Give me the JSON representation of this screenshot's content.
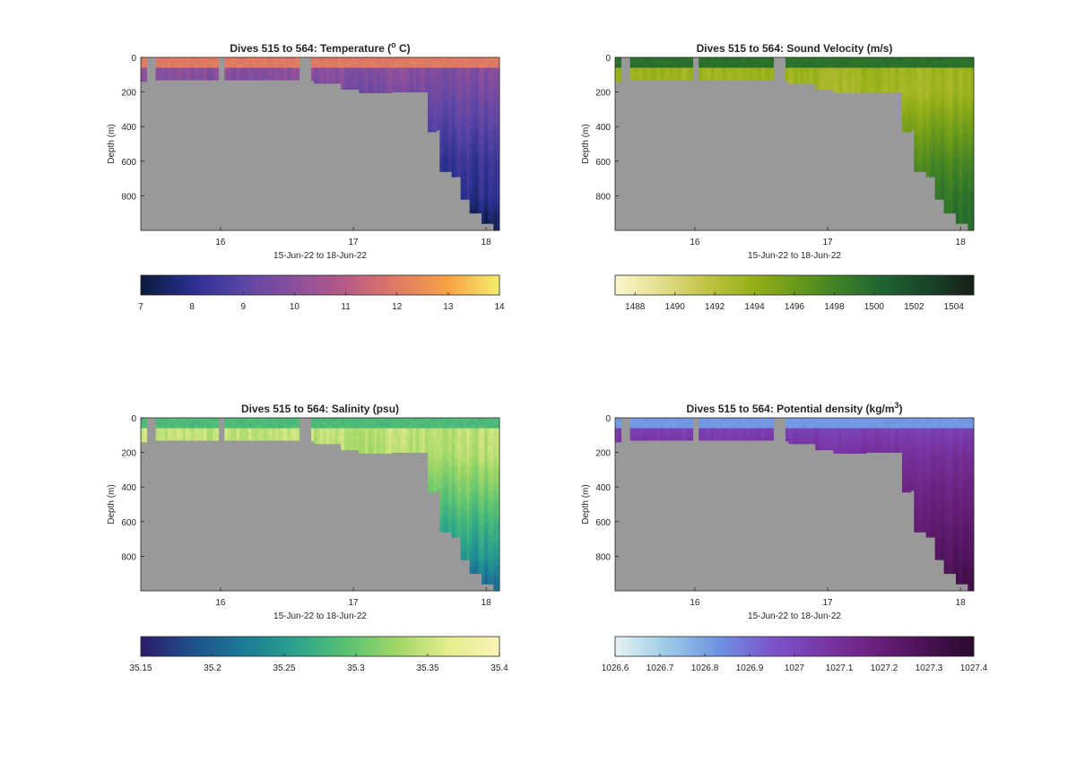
{
  "figure": {
    "background": "#ffffff",
    "nodata_color": "#999999"
  },
  "chart_data": [
    {
      "type": "heatmap",
      "id": "temperature",
      "title": "Dives 515 to 564: Temperature (",
      "title_sup": "o",
      "title_suffix": " C)",
      "xlabel": "15-Jun-22 to 18-Jun-22",
      "ylabel": "Depth (m)",
      "xlim": [
        15.4,
        18.1
      ],
      "ylim": [
        0,
        1000
      ],
      "y_reversed": true,
      "xticks": [
        16,
        17,
        18
      ],
      "xtick_labels": [
        "16",
        "17",
        "18"
      ],
      "yticks": [
        0,
        200,
        400,
        600,
        800
      ],
      "ytick_labels": [
        "0",
        "200",
        "400",
        "600",
        "800"
      ],
      "colormap": [
        "#0a1a3a",
        "#2a2f8f",
        "#5b45a6",
        "#8a4f9c",
        "#b85a86",
        "#e07a63",
        "#f7a245",
        "#f5ee6c"
      ],
      "colorbar_range": [
        7,
        14
      ],
      "colorbar_ticks": [
        7,
        8,
        9,
        10,
        11,
        12,
        13,
        14
      ],
      "colorbar_tick_labels": [
        "7",
        "8",
        "9",
        "10",
        "11",
        "12",
        "13",
        "14"
      ],
      "surface": {
        "value": 12.0,
        "depth_start": 0,
        "depth_end": 55
      },
      "profile": [
        {
          "depth": 60,
          "value": 10.0
        },
        {
          "depth": 200,
          "value": 9.6
        },
        {
          "depth": 400,
          "value": 9.0
        },
        {
          "depth": 600,
          "value": 8.4
        },
        {
          "depth": 800,
          "value": 8.1
        },
        {
          "depth": 950,
          "value": 7.4
        }
      ],
      "col_amp": 0.3,
      "lower_shift": -0.1
    },
    {
      "type": "heatmap",
      "id": "sound_velocity",
      "title": "Dives 515 to 564: Sound Velocity (m/s)",
      "xlabel": "15-Jun-22 to 18-Jun-22",
      "ylabel": "Depth (m)",
      "xlim": [
        15.4,
        18.1
      ],
      "ylim": [
        0,
        1000
      ],
      "y_reversed": true,
      "xticks": [
        16,
        17,
        18
      ],
      "xtick_labels": [
        "16",
        "17",
        "18"
      ],
      "yticks": [
        0,
        200,
        400,
        600,
        800
      ],
      "ytick_labels": [
        "0",
        "200",
        "400",
        "600",
        "800"
      ],
      "colormap": [
        "#fdf6cf",
        "#e4df8e",
        "#c3c447",
        "#99b119",
        "#6c9a1a",
        "#3d8026",
        "#1d6331",
        "#1a4427",
        "#151e16"
      ],
      "colorbar_range": [
        1487,
        1505
      ],
      "colorbar_ticks": [
        1488,
        1490,
        1492,
        1494,
        1496,
        1498,
        1500,
        1502,
        1504
      ],
      "colorbar_tick_labels": [
        "1488",
        "1490",
        "1492",
        "1494",
        "1496",
        "1498",
        "1500",
        "1502",
        "1504"
      ],
      "surface": {
        "value": 1499.5,
        "depth_start": 0,
        "depth_end": 55
      },
      "profile": [
        {
          "depth": 60,
          "value": 1493.5
        },
        {
          "depth": 200,
          "value": 1493.2
        },
        {
          "depth": 400,
          "value": 1495.5
        },
        {
          "depth": 600,
          "value": 1497.5
        },
        {
          "depth": 800,
          "value": 1499.0
        },
        {
          "depth": 950,
          "value": 1499.5
        }
      ],
      "col_amp": 0.6,
      "lower_shift": 0.0
    },
    {
      "type": "heatmap",
      "id": "salinity",
      "title": "Dives 515 to 564: Salinity (psu)",
      "xlabel": "15-Jun-22 to 18-Jun-22",
      "ylabel": "Depth (m)",
      "xlim": [
        15.4,
        18.1
      ],
      "ylim": [
        0,
        1000
      ],
      "y_reversed": true,
      "xticks": [
        16,
        17,
        18
      ],
      "xtick_labels": [
        "16",
        "17",
        "18"
      ],
      "yticks": [
        0,
        200,
        400,
        600,
        800
      ],
      "ytick_labels": [
        "0",
        "200",
        "400",
        "600",
        "800"
      ],
      "colormap": [
        "#2c1a6b",
        "#1f4f8c",
        "#1b7a95",
        "#2aa38d",
        "#58c173",
        "#a0d766",
        "#e5ec8d",
        "#fbf5b6"
      ],
      "colorbar_range": [
        35.15,
        35.4
      ],
      "colorbar_ticks": [
        35.15,
        35.2,
        35.25,
        35.3,
        35.35,
        35.4
      ],
      "colorbar_tick_labels": [
        "35.15",
        "35.2",
        "35.25",
        "35.3",
        "35.35",
        "35.4"
      ],
      "surface": {
        "value": 35.285,
        "depth_start": 0,
        "depth_end": 55
      },
      "profile": [
        {
          "depth": 60,
          "value": 35.345
        },
        {
          "depth": 200,
          "value": 35.34
        },
        {
          "depth": 400,
          "value": 35.31
        },
        {
          "depth": 600,
          "value": 35.275
        },
        {
          "depth": 800,
          "value": 35.245
        },
        {
          "depth": 950,
          "value": 35.21
        }
      ],
      "col_amp": 0.012,
      "lower_shift": 0.0
    },
    {
      "type": "heatmap",
      "id": "potential_density",
      "title": "Dives 515 to 564: Potential density (kg/m",
      "title_sup": "3",
      "title_suffix": ")",
      "xlabel": "15-Jun-22 to 18-Jun-22",
      "ylabel": "Depth (m)",
      "xlim": [
        15.4,
        18.1
      ],
      "ylim": [
        0,
        1000
      ],
      "y_reversed": true,
      "xticks": [
        16,
        17,
        18
      ],
      "xtick_labels": [
        "16",
        "17",
        "18"
      ],
      "yticks": [
        0,
        200,
        400,
        600,
        800
      ],
      "ytick_labels": [
        "0",
        "200",
        "400",
        "600",
        "800"
      ],
      "colormap": [
        "#e8f3f3",
        "#9ccbe6",
        "#6f94e2",
        "#7a57cf",
        "#7a38a8",
        "#6b2280",
        "#4c1256",
        "#2a0a2b"
      ],
      "colorbar_range": [
        1026.6,
        1027.4
      ],
      "colorbar_ticks": [
        1026.6,
        1026.7,
        1026.8,
        1026.9,
        1027,
        1027.1,
        1027.2,
        1027.3,
        1027.4
      ],
      "colorbar_tick_labels": [
        "1026.6",
        "1026.7",
        "1026.8",
        "1026.9",
        "1027",
        "1027.1",
        "1027.2",
        "1027.3",
        "1027.4"
      ],
      "surface": {
        "value": 1026.82,
        "depth_start": 0,
        "depth_end": 55
      },
      "profile": [
        {
          "depth": 60,
          "value": 1027.02
        },
        {
          "depth": 200,
          "value": 1027.09
        },
        {
          "depth": 400,
          "value": 1027.16
        },
        {
          "depth": 600,
          "value": 1027.21
        },
        {
          "depth": 800,
          "value": 1027.26
        },
        {
          "depth": 950,
          "value": 1027.31
        }
      ],
      "col_amp": 0.02,
      "lower_shift": 0.0
    }
  ],
  "dives": {
    "gaps": [
      [
        15.45,
        15.51
      ],
      [
        15.99,
        16.04
      ],
      [
        16.59,
        16.69
      ]
    ],
    "max_depth": [
      {
        "x": 15.4,
        "depth": 140
      },
      {
        "x": 15.52,
        "depth": 130
      },
      {
        "x": 16.6,
        "depth": 135
      },
      {
        "x": 16.7,
        "depth": 150
      },
      {
        "x": 16.9,
        "depth": 185
      },
      {
        "x": 17.05,
        "depth": 205
      },
      {
        "x": 17.3,
        "depth": 200
      },
      {
        "x": 17.52,
        "depth": 200
      },
      {
        "x": 17.56,
        "depth": 430
      },
      {
        "x": 17.62,
        "depth": 420
      },
      {
        "x": 17.66,
        "depth": 660
      },
      {
        "x": 17.74,
        "depth": 690
      },
      {
        "x": 17.8,
        "depth": 820
      },
      {
        "x": 17.88,
        "depth": 900
      },
      {
        "x": 17.96,
        "depth": 960
      },
      {
        "x": 18.05,
        "depth": 1000
      }
    ]
  }
}
